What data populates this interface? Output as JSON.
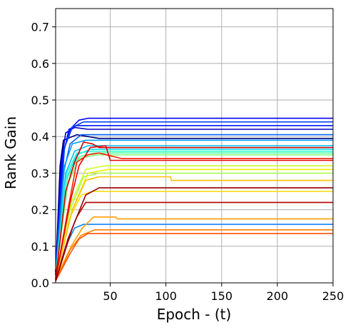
{
  "chart_data": {
    "type": "line",
    "xlabel": "Epoch - (t)",
    "ylabel": "Rank Gain",
    "xlim": [
      1,
      250
    ],
    "ylim": [
      0,
      0.75
    ],
    "xticks": [
      50,
      100,
      150,
      200,
      250
    ],
    "yticks": [
      0.0,
      0.1,
      0.2,
      0.3,
      0.4,
      0.5,
      0.6,
      0.7
    ],
    "xtick_labels": [
      "50",
      "100",
      "150",
      "200",
      "250"
    ],
    "ytick_labels": [
      "0.0",
      "0.1",
      "0.2",
      "0.3",
      "0.4",
      "0.5",
      "0.6",
      "0.7"
    ],
    "grid": true,
    "legend": "none",
    "colormap": "jet",
    "series": [
      {
        "color": "#00007f",
        "points": [
          [
            1,
            0.02
          ],
          [
            5,
            0.32
          ],
          [
            8,
            0.39
          ],
          [
            12,
            0.395
          ],
          [
            20,
            0.405
          ],
          [
            30,
            0.4
          ],
          [
            40,
            0.395
          ],
          [
            250,
            0.395
          ]
        ]
      },
      {
        "color": "#0000c8",
        "points": [
          [
            1,
            0.03
          ],
          [
            6,
            0.33
          ],
          [
            10,
            0.41
          ],
          [
            18,
            0.425
          ],
          [
            30,
            0.42
          ],
          [
            60,
            0.42
          ],
          [
            250,
            0.42
          ]
        ]
      },
      {
        "color": "#0000ff",
        "points": [
          [
            1,
            0.03
          ],
          [
            8,
            0.36
          ],
          [
            14,
            0.42
          ],
          [
            22,
            0.445
          ],
          [
            30,
            0.45
          ],
          [
            40,
            0.45
          ],
          [
            250,
            0.45
          ]
        ]
      },
      {
        "color": "#0018ff",
        "points": [
          [
            1,
            0.02
          ],
          [
            7,
            0.34
          ],
          [
            13,
            0.42
          ],
          [
            20,
            0.43
          ],
          [
            35,
            0.43
          ],
          [
            250,
            0.43
          ]
        ]
      },
      {
        "color": "#0040ff",
        "points": [
          [
            1,
            0.03
          ],
          [
            9,
            0.37
          ],
          [
            16,
            0.425
          ],
          [
            26,
            0.44
          ],
          [
            40,
            0.44
          ],
          [
            250,
            0.44
          ]
        ]
      },
      {
        "color": "#0060ff",
        "points": [
          [
            1,
            0.02
          ],
          [
            8,
            0.3
          ],
          [
            14,
            0.38
          ],
          [
            24,
            0.405
          ],
          [
            40,
            0.405
          ],
          [
            250,
            0.405
          ]
        ]
      },
      {
        "color": "#1080ff",
        "points": [
          [
            1,
            0.01
          ],
          [
            10,
            0.1
          ],
          [
            18,
            0.15
          ],
          [
            26,
            0.16
          ],
          [
            250,
            0.16
          ]
        ]
      },
      {
        "color": "#00a0ff",
        "points": [
          [
            1,
            0.02
          ],
          [
            9,
            0.32
          ],
          [
            16,
            0.38
          ],
          [
            28,
            0.39
          ],
          [
            250,
            0.39
          ]
        ]
      },
      {
        "color": "#00c0ff",
        "points": [
          [
            1,
            0.02
          ],
          [
            10,
            0.3
          ],
          [
            18,
            0.36
          ],
          [
            30,
            0.375
          ],
          [
            250,
            0.375
          ]
        ]
      },
      {
        "color": "#10e0f0",
        "points": [
          [
            1,
            0.02
          ],
          [
            10,
            0.28
          ],
          [
            20,
            0.35
          ],
          [
            32,
            0.365
          ],
          [
            250,
            0.365
          ]
        ]
      },
      {
        "color": "#30ffd0",
        "points": [
          [
            1,
            0.02
          ],
          [
            11,
            0.3
          ],
          [
            20,
            0.355
          ],
          [
            34,
            0.36
          ],
          [
            250,
            0.36
          ]
        ]
      },
      {
        "color": "#50ffa8",
        "points": [
          [
            1,
            0.02
          ],
          [
            12,
            0.29
          ],
          [
            22,
            0.345
          ],
          [
            36,
            0.355
          ],
          [
            250,
            0.355
          ]
        ]
      },
      {
        "color": "#80ff80",
        "points": [
          [
            1,
            0.02
          ],
          [
            12,
            0.27
          ],
          [
            22,
            0.34
          ],
          [
            38,
            0.35
          ],
          [
            250,
            0.35
          ]
        ]
      },
      {
        "color": "#a8ff50",
        "points": [
          [
            1,
            0.02
          ],
          [
            14,
            0.2
          ],
          [
            26,
            0.29
          ],
          [
            40,
            0.3
          ],
          [
            250,
            0.3
          ]
        ]
      },
      {
        "color": "#d0ff28",
        "points": [
          [
            1,
            0.02
          ],
          [
            15,
            0.22
          ],
          [
            28,
            0.31
          ],
          [
            45,
            0.32
          ],
          [
            250,
            0.32
          ]
        ]
      },
      {
        "color": "#f0f000",
        "points": [
          [
            1,
            0.01
          ],
          [
            16,
            0.2
          ],
          [
            30,
            0.3
          ],
          [
            48,
            0.31
          ],
          [
            250,
            0.31
          ]
        ]
      },
      {
        "color": "#ffd800",
        "points": [
          [
            1,
            0.01
          ],
          [
            14,
            0.18
          ],
          [
            24,
            0.24
          ],
          [
            34,
            0.25
          ],
          [
            250,
            0.25
          ]
        ]
      },
      {
        "color": "#ffc000",
        "points": [
          [
            1,
            0.01
          ],
          [
            16,
            0.2
          ],
          [
            28,
            0.28
          ],
          [
            40,
            0.29
          ],
          [
            104,
            0.29
          ],
          [
            105,
            0.28
          ],
          [
            250,
            0.28
          ]
        ]
      },
      {
        "color": "#ffa000",
        "points": [
          [
            1,
            0.01
          ],
          [
            15,
            0.1
          ],
          [
            25,
            0.15
          ],
          [
            35,
            0.18
          ],
          [
            55,
            0.18
          ],
          [
            56,
            0.175
          ],
          [
            250,
            0.175
          ]
        ]
      },
      {
        "color": "#ff8000",
        "points": [
          [
            1,
            0.005
          ],
          [
            14,
            0.09
          ],
          [
            24,
            0.13
          ],
          [
            36,
            0.145
          ],
          [
            250,
            0.145
          ]
        ]
      },
      {
        "color": "#ff5000",
        "points": [
          [
            1,
            0.005
          ],
          [
            14,
            0.08
          ],
          [
            22,
            0.12
          ],
          [
            30,
            0.135
          ],
          [
            250,
            0.135
          ]
        ]
      },
      {
        "color": "#ff2000",
        "points": [
          [
            1,
            0.01
          ],
          [
            12,
            0.2
          ],
          [
            20,
            0.33
          ],
          [
            30,
            0.35
          ],
          [
            40,
            0.355
          ],
          [
            60,
            0.34
          ],
          [
            250,
            0.34
          ]
        ]
      },
      {
        "color": "#f00000",
        "points": [
          [
            1,
            0.01
          ],
          [
            14,
            0.22
          ],
          [
            22,
            0.32
          ],
          [
            32,
            0.37
          ],
          [
            46,
            0.375
          ],
          [
            50,
            0.335
          ],
          [
            250,
            0.335
          ]
        ]
      },
      {
        "color": "#d00000",
        "points": [
          [
            1,
            0.01
          ],
          [
            10,
            0.25
          ],
          [
            18,
            0.33
          ],
          [
            26,
            0.385
          ],
          [
            34,
            0.38
          ],
          [
            40,
            0.37
          ],
          [
            250,
            0.37
          ]
        ]
      },
      {
        "color": "#b40000",
        "points": [
          [
            1,
            0.005
          ],
          [
            12,
            0.12
          ],
          [
            20,
            0.18
          ],
          [
            28,
            0.22
          ],
          [
            36,
            0.22
          ],
          [
            250,
            0.22
          ]
        ]
      },
      {
        "color": "#960000",
        "points": [
          [
            1,
            0.005
          ],
          [
            16,
            0.15
          ],
          [
            28,
            0.24
          ],
          [
            40,
            0.26
          ],
          [
            250,
            0.26
          ]
        ]
      }
    ]
  }
}
